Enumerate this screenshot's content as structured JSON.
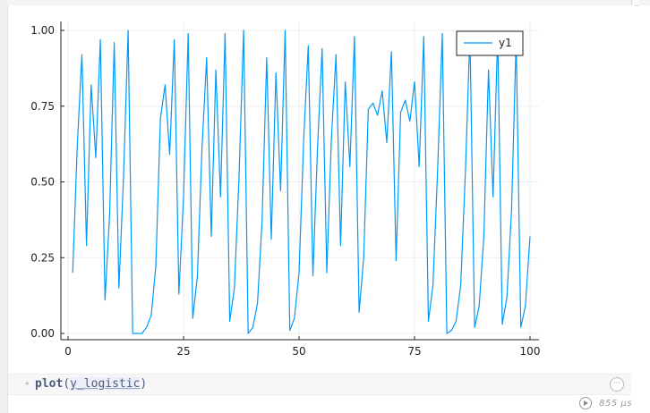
{
  "cell": {
    "code": {
      "fn": "plot",
      "open": "(",
      "arg": "y_logistic",
      "close": ")"
    },
    "runtime": "855 μs"
  },
  "icons": {
    "run": "play-circle-icon",
    "more": "more-options-icon"
  },
  "colors": {
    "series": "#009AFA",
    "axis": "#000000",
    "grid": "#eeeeee",
    "code": "#4a5a7a"
  },
  "chart_data": {
    "type": "line",
    "title": "",
    "xlabel": "",
    "ylabel": "",
    "xlim": [
      0,
      100
    ],
    "ylim": [
      0,
      1.0
    ],
    "x_ticks": [
      "0",
      "25",
      "50",
      "75",
      "100"
    ],
    "y_ticks": [
      "0.00",
      "0.25",
      "0.50",
      "0.75",
      "1.00"
    ],
    "grid": true,
    "legend_position": "top-right",
    "series": [
      {
        "name": "y1",
        "color": "#009AFA",
        "x": [
          1,
          2,
          3,
          4,
          5,
          6,
          7,
          8,
          9,
          10,
          11,
          12,
          13,
          14,
          15,
          16,
          17,
          18,
          19,
          20,
          21,
          22,
          23,
          24,
          25,
          26,
          27,
          28,
          29,
          30,
          31,
          32,
          33,
          34,
          35,
          36,
          37,
          38,
          39,
          40,
          41,
          42,
          43,
          44,
          45,
          46,
          47,
          48,
          49,
          50,
          51,
          52,
          53,
          54,
          55,
          56,
          57,
          58,
          59,
          60,
          61,
          62,
          63,
          64,
          65,
          66,
          67,
          68,
          69,
          70,
          71,
          72,
          73,
          74,
          75,
          76,
          77,
          78,
          79,
          80,
          81,
          82,
          83,
          84,
          85,
          86,
          87,
          88,
          89,
          90,
          91,
          92,
          93,
          94,
          95,
          96,
          97,
          98,
          99,
          100
        ],
        "values": [
          0.2,
          0.62,
          0.92,
          0.29,
          0.82,
          0.58,
          0.97,
          0.11,
          0.39,
          0.96,
          0.15,
          0.51,
          1.0,
          0.0,
          0.0,
          0.0,
          0.02,
          0.06,
          0.22,
          0.71,
          0.82,
          0.59,
          0.97,
          0.13,
          0.45,
          0.99,
          0.05,
          0.19,
          0.61,
          0.91,
          0.32,
          0.87,
          0.45,
          0.99,
          0.04,
          0.15,
          0.51,
          1.0,
          0.0,
          0.02,
          0.1,
          0.37,
          0.91,
          0.31,
          0.86,
          0.47,
          1.0,
          0.01,
          0.05,
          0.2,
          0.64,
          0.95,
          0.19,
          0.61,
          0.94,
          0.2,
          0.64,
          0.92,
          0.29,
          0.83,
          0.55,
          0.98,
          0.07,
          0.25,
          0.74,
          0.76,
          0.72,
          0.8,
          0.63,
          0.93,
          0.24,
          0.73,
          0.77,
          0.7,
          0.83,
          0.55,
          0.98,
          0.04,
          0.16,
          0.54,
          0.99,
          0.0,
          0.01,
          0.04,
          0.16,
          0.53,
          0.99,
          0.02,
          0.09,
          0.32,
          0.87,
          0.45,
          0.99,
          0.03,
          0.12,
          0.41,
          0.97,
          0.02,
          0.09,
          0.32
        ]
      }
    ]
  }
}
